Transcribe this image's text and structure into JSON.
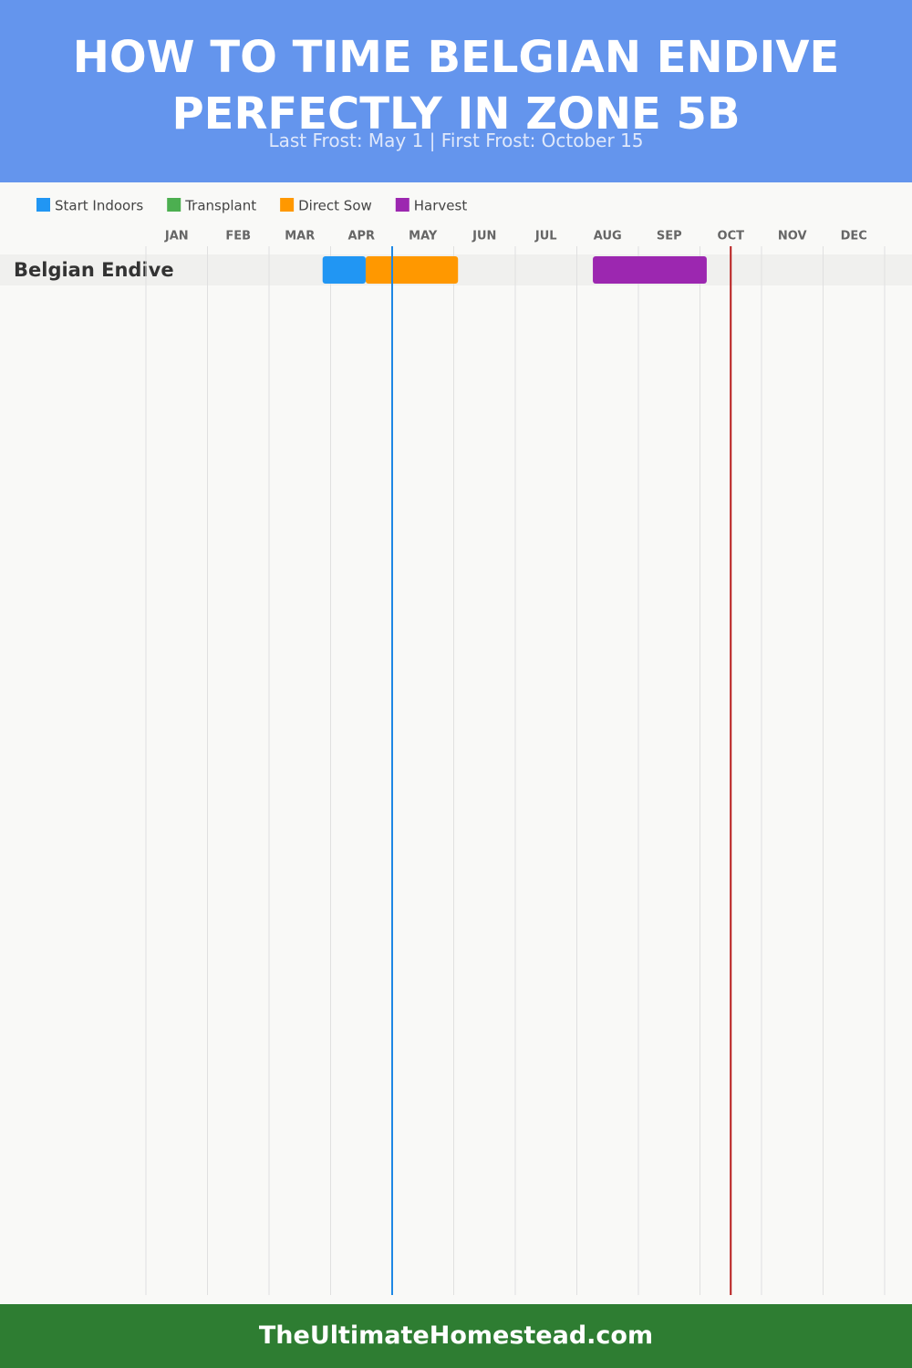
{
  "chart_data": {
    "type": "gantt",
    "title": "HOW TO TIME BELGIAN ENDIVE PERFECTLY IN ZONE 5B",
    "subtitle": "Last Frost: May 1 | First Frost: October 15",
    "footer": "TheUltimateHomestead.com",
    "categories": [
      "Belgian Endive"
    ],
    "series": [
      {
        "name": "Start Indoors",
        "color": "#2196f3",
        "values": [
          [
            2.87,
            3.57
          ]
        ]
      },
      {
        "name": "Transplant",
        "color": "#4caf50",
        "values": [
          null
        ]
      },
      {
        "name": "Direct Sow",
        "color": "#ff9800",
        "values": [
          [
            3.57,
            5.07
          ]
        ]
      },
      {
        "name": "Harvest",
        "color": "#9c27b0",
        "values": [
          [
            7.26,
            9.11
          ]
        ]
      }
    ],
    "frost_lines": [
      {
        "value": 4,
        "color": "#1e88e5"
      },
      {
        "value": 9.5,
        "color": "#b71c1c"
      }
    ],
    "xlim": [
      0,
      12
    ],
    "xticks": [
      {
        "value": 0,
        "label": "JAN"
      },
      {
        "value": 1,
        "label": "FEB"
      },
      {
        "value": 2,
        "label": "MAR"
      },
      {
        "value": 3,
        "label": "APR"
      },
      {
        "value": 4,
        "label": "MAY"
      },
      {
        "value": 5,
        "label": "JUN"
      },
      {
        "value": 6,
        "label": "JUL"
      },
      {
        "value": 7,
        "label": "AUG"
      },
      {
        "value": 8,
        "label": "SEP"
      },
      {
        "value": 9,
        "label": "OCT"
      },
      {
        "value": 10,
        "label": "NOV"
      },
      {
        "value": 11,
        "label": "DEC"
      }
    ],
    "grid": true
  }
}
